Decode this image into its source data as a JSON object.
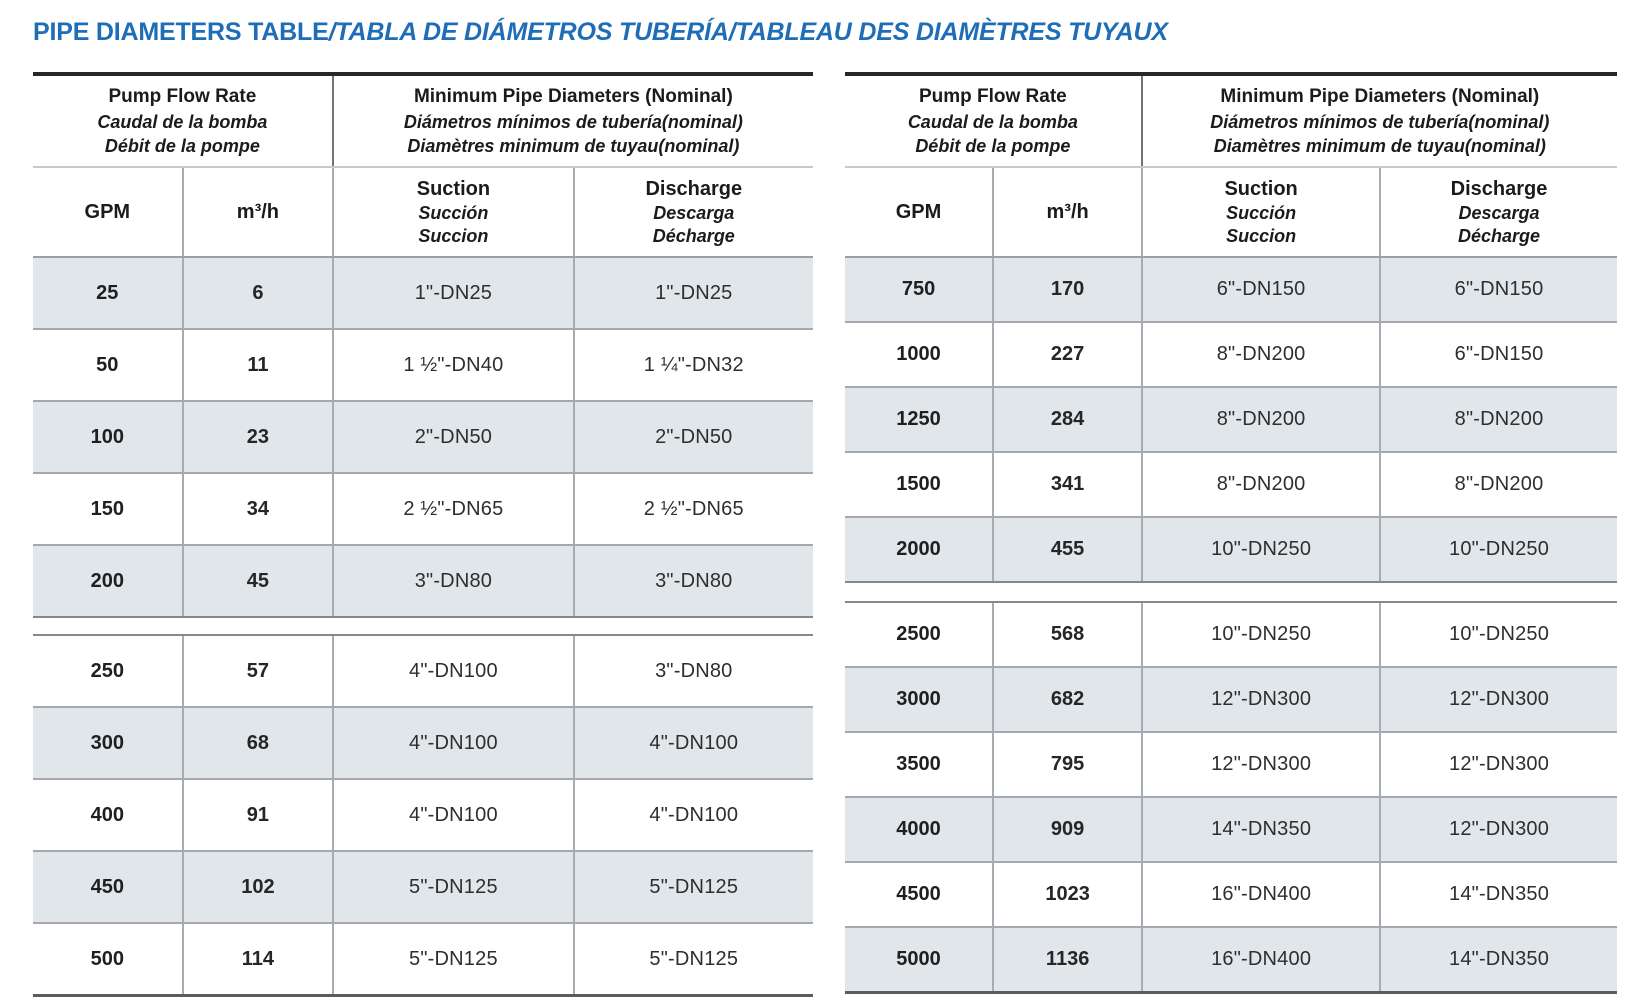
{
  "page": {
    "title_main": "PIPE DIAMETERS TABLE",
    "title_rest": "/TABLA DE DIÁMETROS TUBERÍA/TABLEAU DES DIAMÈTRES TUYAUX"
  },
  "colors": {
    "accent_blue": "#1e6db6",
    "row_shade": "#e0e6ea",
    "border_dark": "#26282a"
  },
  "header": {
    "flow_group": [
      "Pump Flow Rate",
      "Caudal de la bomba",
      "Débit de la pompe"
    ],
    "diam_group": [
      "Minimum Pipe Diameters (Nominal)",
      "Diámetros mínimos de tubería(nominal)",
      "Diamètres minimum de tuyau(nominal)"
    ],
    "col_gpm": "GPM",
    "col_m3h": "m³/h",
    "col_suction": [
      "Suction",
      "Succión",
      "Succion"
    ],
    "col_discharge": [
      "Discharge",
      "Descarga",
      "Décharge"
    ]
  },
  "tables": [
    {
      "sections": [
        {
          "rows": [
            [
              "25",
              "6",
              "1\"-DN25",
              "1\"-DN25"
            ],
            [
              "50",
              "11",
              "1 ½\"-DN40",
              "1 ¼\"-DN32"
            ],
            [
              "100",
              "23",
              "2\"-DN50",
              "2\"-DN50"
            ],
            [
              "150",
              "34",
              "2 ½\"-DN65",
              "2 ½\"-DN65"
            ],
            [
              "200",
              "45",
              "3\"-DN80",
              "3\"-DN80"
            ]
          ]
        },
        {
          "rows": [
            [
              "250",
              "57",
              "4\"-DN100",
              "3\"-DN80"
            ],
            [
              "300",
              "68",
              "4\"-DN100",
              "4\"-DN100"
            ],
            [
              "400",
              "91",
              "4\"-DN100",
              "4\"-DN100"
            ],
            [
              "450",
              "102",
              "5\"-DN125",
              "5\"-DN125"
            ],
            [
              "500",
              "114",
              "5\"-DN125",
              "5\"-DN125"
            ]
          ]
        }
      ]
    },
    {
      "sections": [
        {
          "rows": [
            [
              "750",
              "170",
              "6\"-DN150",
              "6\"-DN150"
            ],
            [
              "1000",
              "227",
              "8\"-DN200",
              "6\"-DN150"
            ],
            [
              "1250",
              "284",
              "8\"-DN200",
              "8\"-DN200"
            ],
            [
              "1500",
              "341",
              "8\"-DN200",
              "8\"-DN200"
            ],
            [
              "2000",
              "455",
              "10\"-DN250",
              "10\"-DN250"
            ]
          ]
        },
        {
          "rows": [
            [
              "2500",
              "568",
              "10\"-DN250",
              "10\"-DN250"
            ],
            [
              "3000",
              "682",
              "12\"-DN300",
              "12\"-DN300"
            ],
            [
              "3500",
              "795",
              "12\"-DN300",
              "12\"-DN300"
            ],
            [
              "4000",
              "909",
              "14\"-DN350",
              "12\"-DN300"
            ],
            [
              "4500",
              "1023",
              "16\"-DN400",
              "14\"-DN350"
            ],
            [
              "5000",
              "1136",
              "16\"-DN400",
              "14\"-DN350"
            ]
          ]
        }
      ]
    }
  ]
}
